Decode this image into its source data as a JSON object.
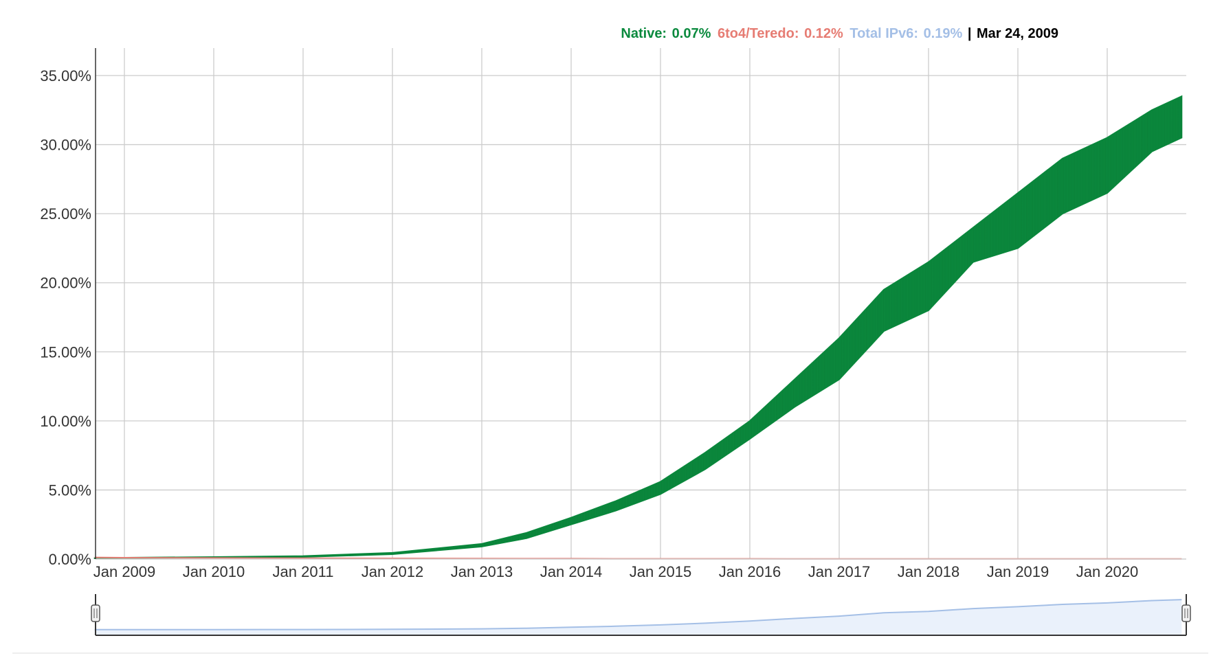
{
  "legend": {
    "native_label": "Native:",
    "native_value": "0.07%",
    "teredo_label": "6to4/Teredo:",
    "teredo_value": "0.12%",
    "total_label": "Total IPv6:",
    "total_value": "0.19%",
    "separator": "|",
    "date": "Mar 24, 2009"
  },
  "colors": {
    "native": "#0b8a3e",
    "teredo": "#e67c73",
    "total": "#a4bfe6",
    "date": "#000000",
    "grid": "#cccccc"
  },
  "chart_data": {
    "type": "area",
    "title": "",
    "xlabel": "",
    "ylabel": "",
    "ylim": [
      0,
      35
    ],
    "y_ticks": [
      "0.00%",
      "5.00%",
      "10.00%",
      "15.00%",
      "20.00%",
      "25.00%",
      "30.00%",
      "35.00%"
    ],
    "x_ticks": [
      "Jan 2009",
      "Jan 2010",
      "Jan 2011",
      "Jan 2012",
      "Jan 2013",
      "Jan 2014",
      "Jan 2015",
      "Jan 2016",
      "Jan 2017",
      "Jan 2018",
      "Jan 2019",
      "Jan 2020"
    ],
    "x": [
      "2008-09",
      "2009-01",
      "2010-01",
      "2011-01",
      "2012-01",
      "2013-01",
      "2013-07",
      "2014-01",
      "2014-07",
      "2015-01",
      "2015-07",
      "2016-01",
      "2016-07",
      "2017-01",
      "2017-07",
      "2018-01",
      "2018-07",
      "2019-01",
      "2019-07",
      "2020-01",
      "2020-07",
      "2020-11"
    ],
    "series": [
      {
        "name": "Native",
        "low": [
          0.05,
          0.07,
          0.1,
          0.15,
          0.35,
          0.9,
          1.5,
          2.5,
          3.5,
          4.7,
          6.5,
          8.7,
          11.0,
          13.0,
          16.5,
          18.0,
          21.5,
          22.5,
          25.0,
          26.5,
          29.5,
          30.5
        ],
        "high": [
          0.07,
          0.1,
          0.15,
          0.22,
          0.45,
          1.1,
          1.9,
          3.0,
          4.2,
          5.6,
          7.7,
          10.0,
          13.0,
          16.0,
          19.5,
          21.5,
          24.0,
          26.5,
          29.0,
          30.5,
          32.5,
          33.5
        ]
      },
      {
        "name": "6to4/Teredo",
        "values": [
          0.12,
          0.1,
          0.08,
          0.06,
          0.05,
          0.04,
          0.03,
          0.03,
          0.02,
          0.02,
          0.02,
          0.02,
          0.01,
          0.01,
          0.01,
          0.01,
          0.01,
          0.01,
          0.01,
          0.01,
          0.01,
          0.01
        ]
      }
    ],
    "overview": {
      "series": "Total IPv6",
      "values": [
        0.19,
        0.2,
        0.25,
        0.3,
        0.5,
        1.0,
        1.7,
        2.7,
        3.8,
        5.2,
        7.0,
        9.3,
        12.0,
        14.5,
        18.0,
        19.5,
        22.5,
        24.5,
        27.0,
        28.5,
        31.0,
        32.0
      ]
    },
    "grid": true,
    "legend_position": "top-right"
  }
}
